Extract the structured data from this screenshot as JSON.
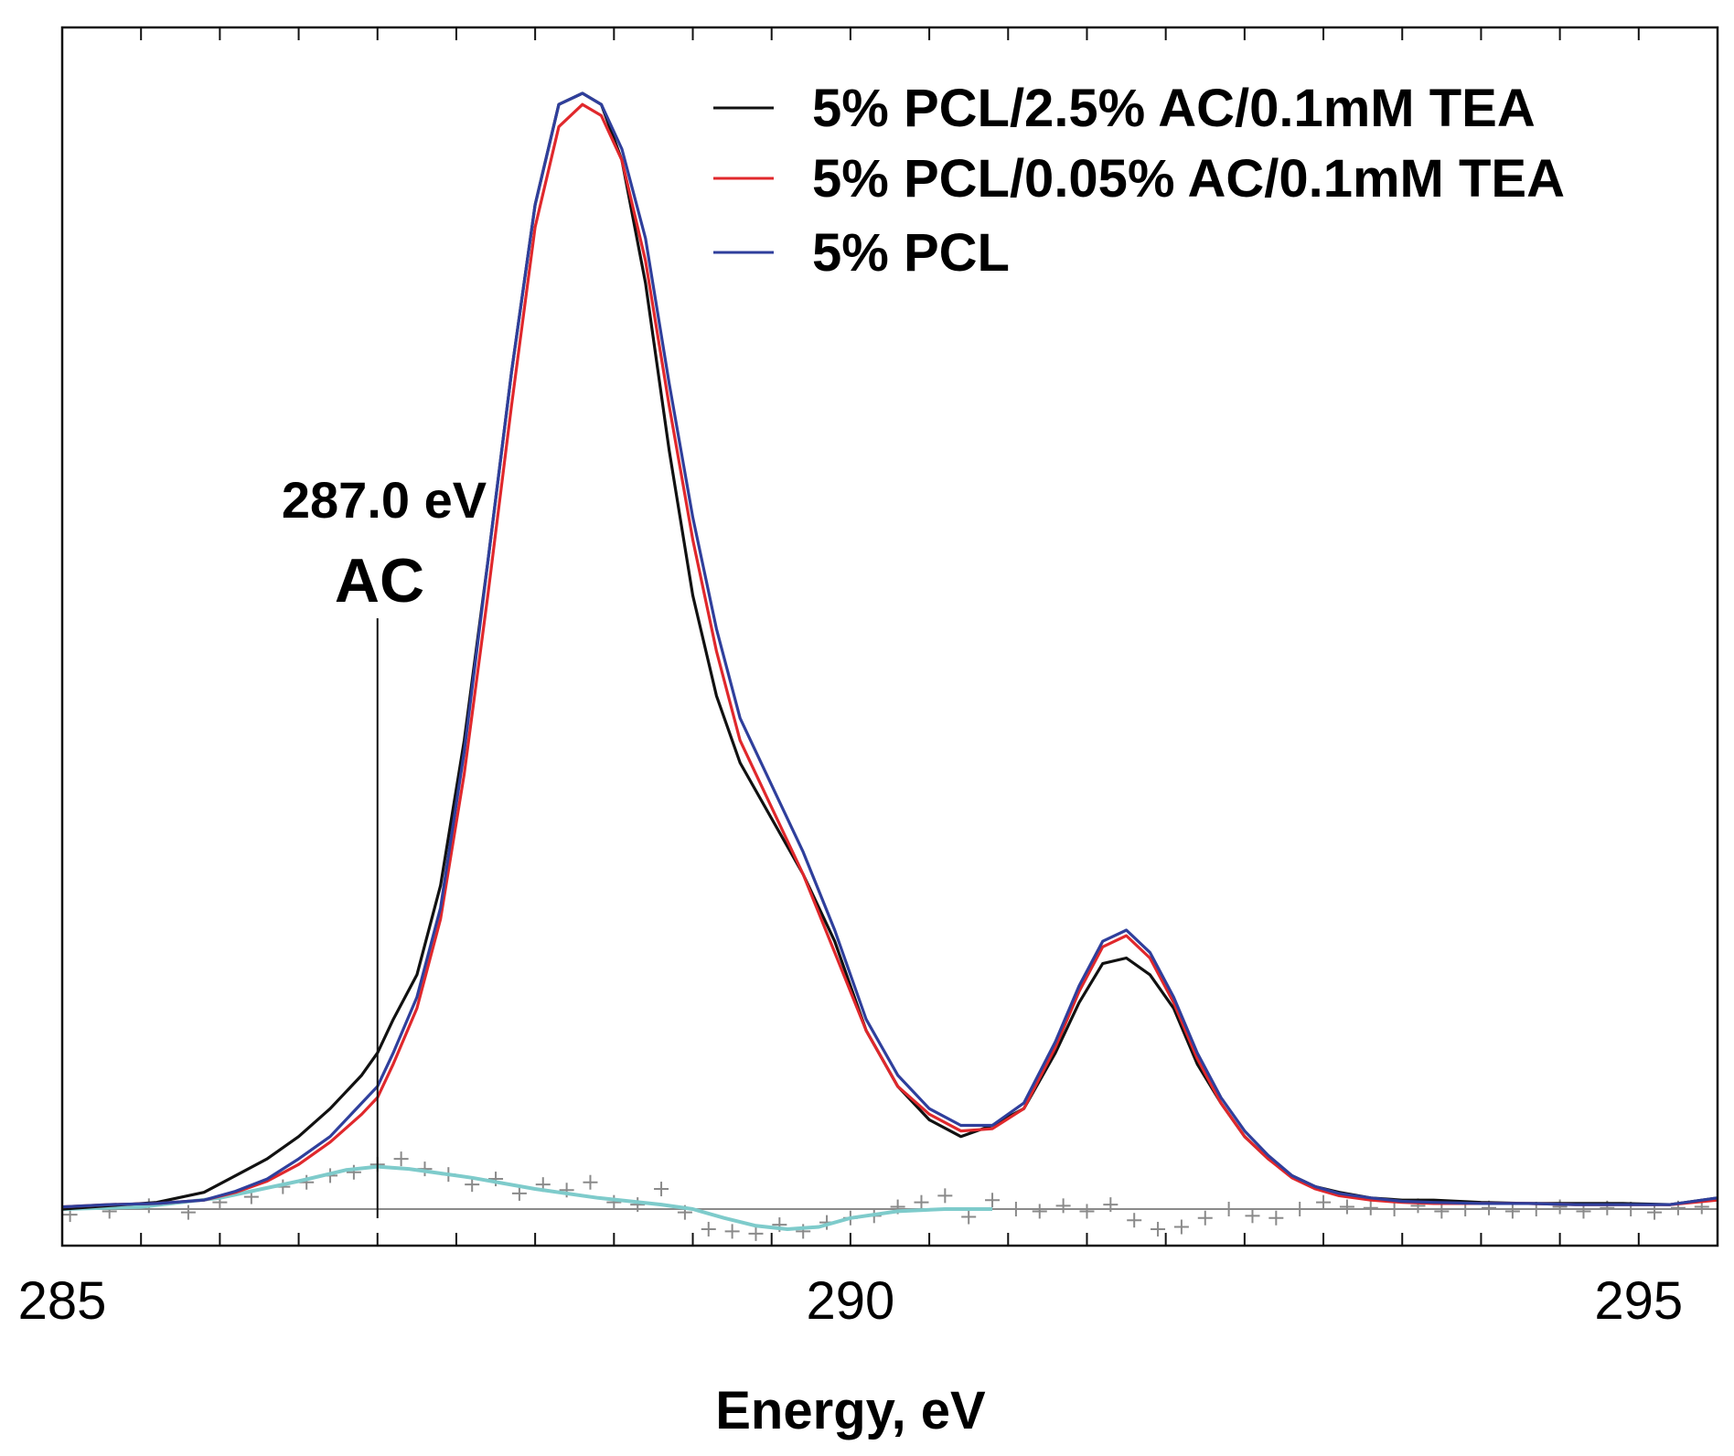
{
  "chart_data": {
    "type": "line",
    "title": "",
    "xlabel": "Energy, eV",
    "ylabel": "",
    "xlim": [
      285,
      295.5
    ],
    "ylim": [
      -0.05,
      1.05
    ],
    "x_ticks": [
      "285",
      "290",
      "295"
    ],
    "x_tick_values": [
      285,
      290,
      295
    ],
    "legend_position": "top-right",
    "colors": {
      "black": "#111111",
      "red": "#e0282c",
      "blue": "#2f3f9c",
      "fit": "#7ecbcb",
      "residual": "#8a8a8a",
      "baseline": "#8a8a8a"
    },
    "series": [
      {
        "name": "5% PCL/2.5% AC/0.1mM TEA",
        "color": "#111111",
        "x": [
          285.0,
          285.3,
          285.6,
          285.9,
          286.1,
          286.3,
          286.5,
          286.7,
          286.9,
          287.0,
          287.1,
          287.25,
          287.4,
          287.55,
          287.7,
          287.85,
          288.0,
          288.15,
          288.3,
          288.42,
          288.55,
          288.7,
          288.85,
          289.0,
          289.15,
          289.3,
          289.5,
          289.7,
          289.9,
          290.1,
          290.3,
          290.5,
          290.7,
          290.9,
          291.1,
          291.3,
          291.45,
          291.6,
          291.75,
          291.9,
          292.05,
          292.2,
          292.35,
          292.5,
          292.65,
          292.8,
          292.95,
          293.1,
          293.3,
          293.5,
          293.7,
          294.0,
          294.3,
          294.6,
          294.9,
          295.2,
          295.5
        ],
        "y": [
          0.0,
          0.003,
          0.006,
          0.015,
          0.03,
          0.045,
          0.065,
          0.09,
          0.12,
          0.14,
          0.17,
          0.21,
          0.29,
          0.42,
          0.58,
          0.75,
          0.9,
          0.99,
          1.0,
          0.99,
          0.94,
          0.83,
          0.68,
          0.55,
          0.46,
          0.4,
          0.35,
          0.3,
          0.24,
          0.16,
          0.11,
          0.08,
          0.065,
          0.075,
          0.09,
          0.14,
          0.185,
          0.22,
          0.225,
          0.21,
          0.18,
          0.13,
          0.095,
          0.065,
          0.045,
          0.03,
          0.02,
          0.015,
          0.01,
          0.008,
          0.008,
          0.006,
          0.005,
          0.005,
          0.005,
          0.004,
          0.01
        ]
      },
      {
        "name": "5% PCL/0.05% AC/0.1mM TEA",
        "color": "#e0282c",
        "x": [
          285.0,
          285.3,
          285.6,
          285.9,
          286.1,
          286.3,
          286.5,
          286.7,
          286.9,
          287.0,
          287.1,
          287.25,
          287.4,
          287.55,
          287.7,
          287.85,
          288.0,
          288.15,
          288.3,
          288.42,
          288.55,
          288.7,
          288.85,
          289.0,
          289.15,
          289.3,
          289.5,
          289.7,
          289.9,
          290.1,
          290.3,
          290.5,
          290.7,
          290.9,
          291.1,
          291.3,
          291.45,
          291.6,
          291.75,
          291.9,
          292.05,
          292.2,
          292.35,
          292.5,
          292.65,
          292.8,
          292.95,
          293.1,
          293.3,
          293.5,
          293.7,
          294.0,
          294.3,
          294.6,
          294.9,
          295.2,
          295.5
        ],
        "y": [
          0.002,
          0.004,
          0.005,
          0.008,
          0.015,
          0.025,
          0.04,
          0.06,
          0.085,
          0.1,
          0.13,
          0.18,
          0.26,
          0.39,
          0.55,
          0.72,
          0.88,
          0.97,
          0.99,
          0.98,
          0.94,
          0.85,
          0.72,
          0.6,
          0.5,
          0.42,
          0.36,
          0.3,
          0.23,
          0.16,
          0.11,
          0.085,
          0.07,
          0.072,
          0.09,
          0.145,
          0.195,
          0.235,
          0.245,
          0.225,
          0.185,
          0.135,
          0.095,
          0.065,
          0.045,
          0.028,
          0.018,
          0.012,
          0.008,
          0.006,
          0.005,
          0.005,
          0.005,
          0.004,
          0.004,
          0.004,
          0.008
        ]
      },
      {
        "name": "5% PCL",
        "color": "#2f3f9c",
        "x": [
          285.0,
          285.3,
          285.6,
          285.9,
          286.1,
          286.3,
          286.5,
          286.7,
          286.9,
          287.0,
          287.1,
          287.25,
          287.4,
          287.55,
          287.7,
          287.85,
          288.0,
          288.15,
          288.3,
          288.42,
          288.55,
          288.7,
          288.85,
          289.0,
          289.15,
          289.3,
          289.5,
          289.7,
          289.9,
          290.1,
          290.3,
          290.5,
          290.7,
          290.9,
          291.1,
          291.3,
          291.45,
          291.6,
          291.75,
          291.9,
          292.05,
          292.2,
          292.35,
          292.5,
          292.65,
          292.8,
          292.95,
          293.1,
          293.3,
          293.5,
          293.7,
          294.0,
          294.3,
          294.6,
          294.9,
          295.2,
          295.5
        ],
        "y": [
          0.002,
          0.004,
          0.005,
          0.008,
          0.016,
          0.027,
          0.045,
          0.065,
          0.095,
          0.11,
          0.14,
          0.19,
          0.27,
          0.41,
          0.58,
          0.75,
          0.9,
          0.99,
          1.0,
          0.99,
          0.95,
          0.87,
          0.74,
          0.62,
          0.52,
          0.44,
          0.38,
          0.32,
          0.25,
          0.17,
          0.12,
          0.09,
          0.075,
          0.075,
          0.095,
          0.15,
          0.2,
          0.24,
          0.25,
          0.23,
          0.19,
          0.14,
          0.1,
          0.07,
          0.048,
          0.03,
          0.02,
          0.014,
          0.01,
          0.007,
          0.006,
          0.005,
          0.005,
          0.004,
          0.004,
          0.004,
          0.01
        ]
      }
    ],
    "difference_fit": {
      "color": "#7ecbcb",
      "x": [
        285.0,
        285.5,
        286.0,
        286.5,
        286.8,
        287.0,
        287.2,
        287.6,
        288.0,
        288.4,
        288.8,
        289.0,
        289.2,
        289.4,
        289.6,
        289.8,
        290.0,
        290.3,
        290.6,
        290.9
      ],
      "y": [
        0.0,
        0.002,
        0.01,
        0.025,
        0.035,
        0.038,
        0.036,
        0.028,
        0.018,
        0.01,
        0.004,
        0.0,
        -0.008,
        -0.015,
        -0.018,
        -0.016,
        -0.008,
        -0.002,
        0.0,
        0.0
      ]
    },
    "residuals": {
      "color": "#8a8a8a",
      "x": [
        285.05,
        285.3,
        285.55,
        285.8,
        286.0,
        286.2,
        286.4,
        286.55,
        286.7,
        286.85,
        287.0,
        287.15,
        287.3,
        287.45,
        287.6,
        287.75,
        287.9,
        288.05,
        288.2,
        288.35,
        288.5,
        288.65,
        288.8,
        288.95,
        289.1,
        289.25,
        289.4,
        289.55,
        289.7,
        289.85,
        290.0,
        290.15,
        290.3,
        290.45,
        290.6,
        290.75,
        290.9,
        291.05,
        291.2,
        291.35,
        291.5,
        291.65,
        291.8,
        291.95,
        292.1,
        292.25,
        292.4,
        292.55,
        292.7,
        292.85,
        293.0,
        293.15,
        293.3,
        293.45,
        293.6,
        293.75,
        293.9,
        294.05,
        294.2,
        294.35,
        294.5,
        294.65,
        294.8,
        294.95,
        295.1,
        295.25,
        295.4
      ],
      "y": [
        -0.005,
        -0.002,
        0.003,
        -0.003,
        0.006,
        0.011,
        0.02,
        0.024,
        0.03,
        0.033,
        0.04,
        0.045,
        0.036,
        0.031,
        0.022,
        0.027,
        0.014,
        0.022,
        0.017,
        0.024,
        0.006,
        0.004,
        0.018,
        -0.003,
        -0.018,
        -0.02,
        -0.022,
        -0.014,
        -0.02,
        -0.012,
        -0.008,
        -0.006,
        0.002,
        0.006,
        0.012,
        -0.007,
        0.008,
        0.0,
        -0.002,
        0.003,
        -0.002,
        0.004,
        -0.01,
        -0.018,
        -0.016,
        -0.008,
        0.0,
        -0.006,
        -0.008,
        0.0,
        0.006,
        0.002,
        0.001,
        0.0,
        0.003,
        -0.002,
        0.0,
        0.001,
        -0.002,
        0.0,
        0.002,
        -0.002,
        0.001,
        0.0,
        -0.003,
        0.001,
        0.002
      ]
    },
    "baseline_y": 0.0,
    "annotation": {
      "energy_label": "287.0 eV",
      "name_label": "AC",
      "x": 287.0
    }
  }
}
